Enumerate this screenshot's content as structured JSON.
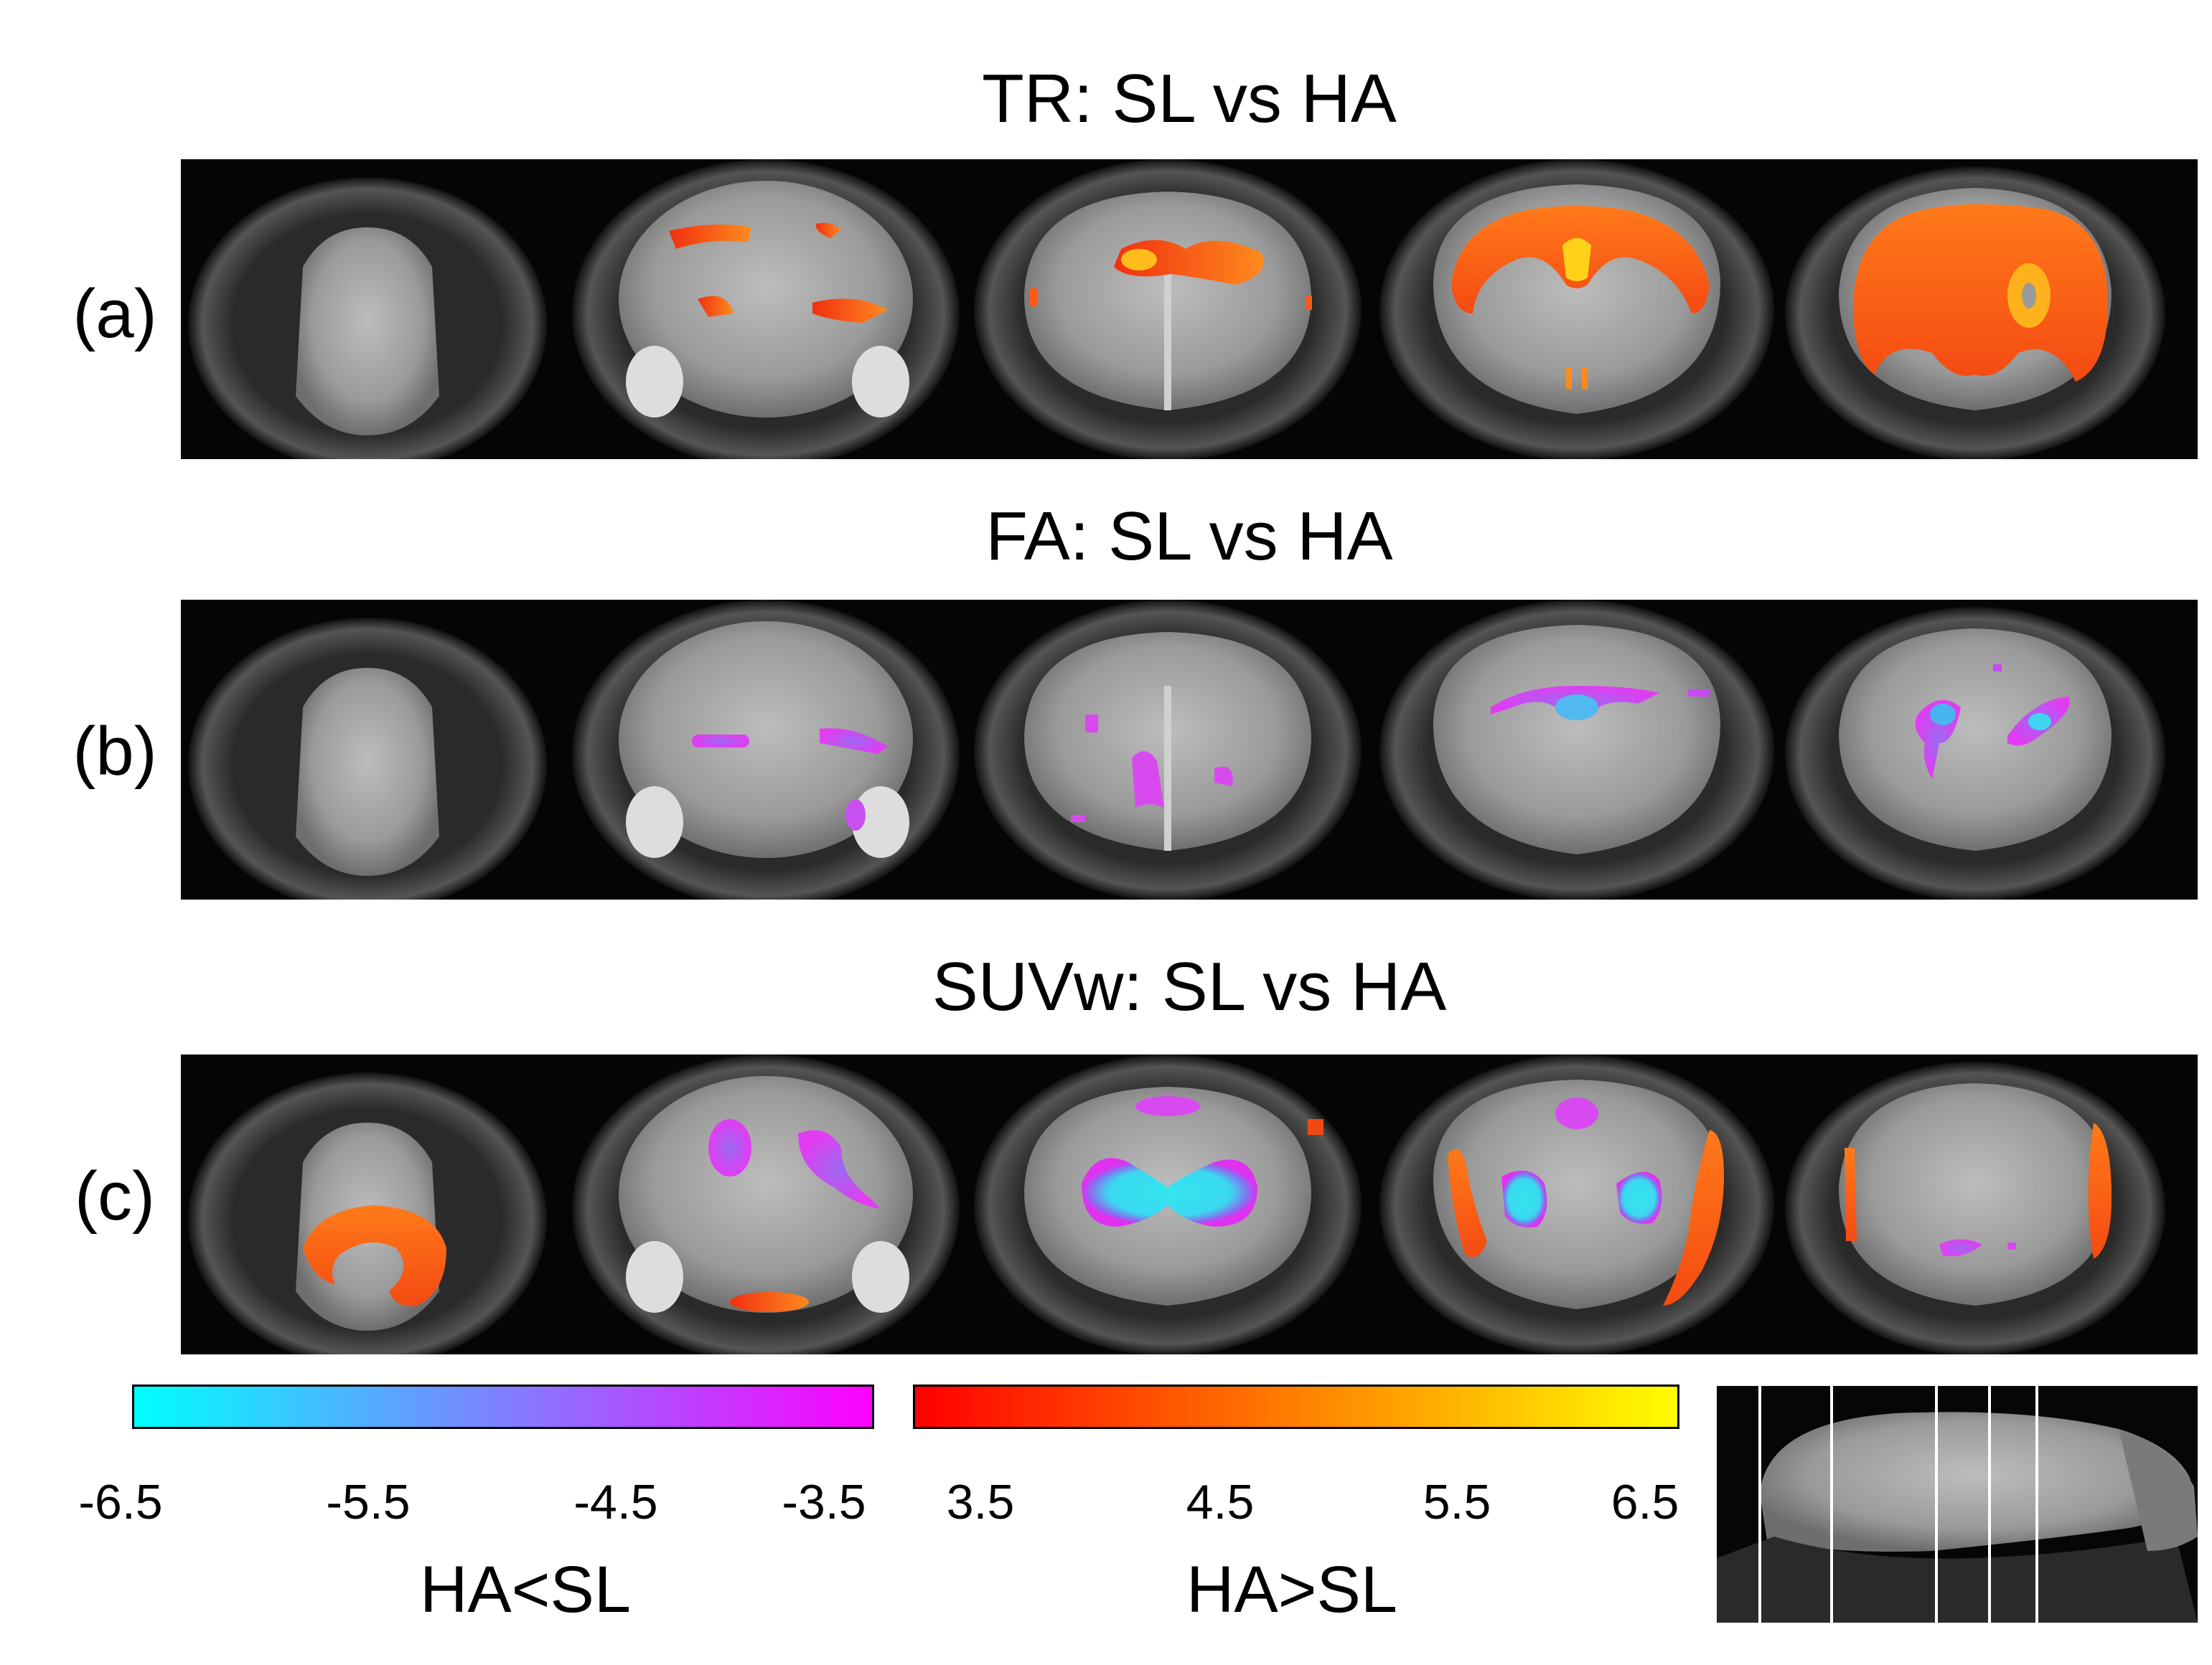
{
  "panels": [
    {
      "label": "(a)",
      "title": "TR: SL vs HA"
    },
    {
      "label": "(b)",
      "title": "FA: SL vs HA"
    },
    {
      "label": "(c)",
      "title": "SUVw: SL vs HA"
    }
  ],
  "colorbars": {
    "negative": {
      "caption": "HA<SL",
      "ticks": [
        "-6.5",
        "-5.5",
        "-4.5",
        "-3.5"
      ],
      "range": [
        -6.5,
        -3.5
      ],
      "colors": [
        "#00ffff",
        "#ff00ff"
      ]
    },
    "positive": {
      "caption": "HA>SL",
      "ticks": [
        "3.5",
        "4.5",
        "5.5",
        "6.5"
      ],
      "range": [
        3.5,
        6.5
      ],
      "colors": [
        "#ff0000",
        "#ffff00"
      ]
    }
  },
  "sagittal_slice_lines": 5
}
